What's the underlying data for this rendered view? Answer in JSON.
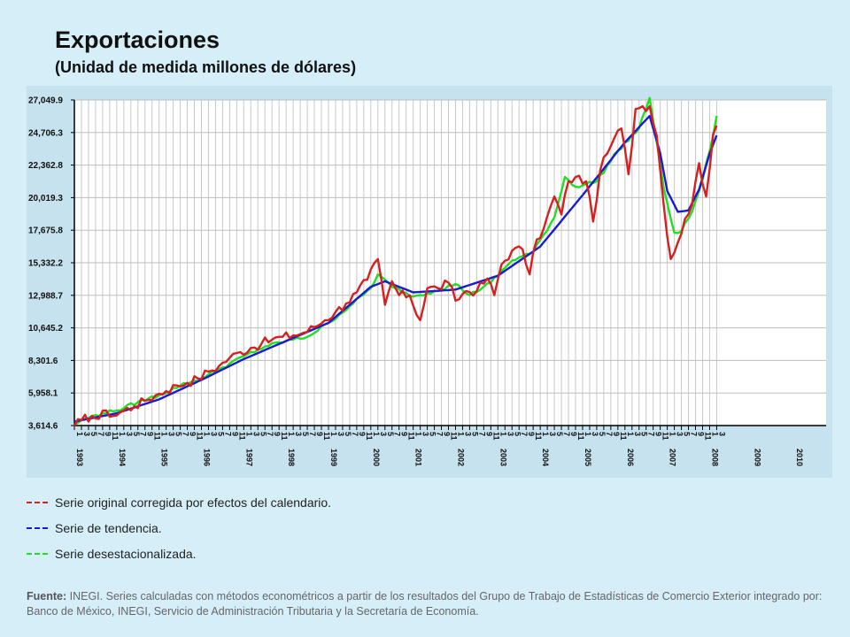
{
  "header": {
    "title": "Exportaciones",
    "subtitle": "(Unidad de medida millones de dólares)"
  },
  "legend": [
    {
      "label": "Serie original corregida por efectos del calendario.",
      "color": "#d42020"
    },
    {
      "label": "Serie de tendencia.",
      "color": "#1a1ad0"
    },
    {
      "label": "Serie desestacionalizada.",
      "color": "#22dd22"
    }
  ],
  "source": {
    "prefix": "Fuente:",
    "text": "INEGI. Series calculadas con métodos econométricos a partir de los resultados del Grupo de Trabajo de Estadísticas de Comercio Exterior integrado por: Banco de México, INEGI, Servicio de Administración Tributaria y la Secretaría de Economía."
  },
  "chart_data": {
    "type": "line",
    "title": "Exportaciones",
    "subtitle": "(Unidad de medida millones de dólares)",
    "ylim": [
      3614.6,
      27049.9
    ],
    "y_ticks": [
      {
        "value": 3614.6,
        "label": "3,614.6"
      },
      {
        "value": 5958.1,
        "label": "5,958.1"
      },
      {
        "value": 8301.6,
        "label": "8,301.6"
      },
      {
        "value": 10645.2,
        "label": "10,645.2"
      },
      {
        "value": 12988.7,
        "label": "12,988.7"
      },
      {
        "value": 15332.2,
        "label": "15,332.2"
      },
      {
        "value": 17675.8,
        "label": "17,675.8"
      },
      {
        "value": 20019.3,
        "label": "20,019.3"
      },
      {
        "value": 22362.8,
        "label": "22,362.8"
      },
      {
        "value": 24706.3,
        "label": "24,706.3"
      },
      {
        "value": 27049.9,
        "label": "27,049.9"
      }
    ],
    "x_years": [
      "1993",
      "1994",
      "1995",
      "1996",
      "1997",
      "1998",
      "1999",
      "2000",
      "2001",
      "2002",
      "2003",
      "2004",
      "2005",
      "2006",
      "2007",
      "2008",
      "2009",
      "2010"
    ],
    "x_month_ticks": [
      "1",
      "3",
      "5",
      "7",
      "9",
      "11"
    ],
    "frequency": "monthly",
    "start": "1993-01",
    "grid": true,
    "series": [
      {
        "name": "Serie original corregida por efectos del calendario.",
        "color": "#d42020",
        "anchors": [
          [
            0,
            3600
          ],
          [
            2,
            4000
          ],
          [
            5,
            4300
          ],
          [
            7,
            4100
          ],
          [
            9,
            4700
          ],
          [
            11,
            4300
          ],
          [
            14,
            4700
          ],
          [
            17,
            5000
          ],
          [
            20,
            5400
          ],
          [
            23,
            5800
          ],
          [
            26,
            6100
          ],
          [
            29,
            6500
          ],
          [
            32,
            6700
          ],
          [
            35,
            7000
          ],
          [
            38,
            7500
          ],
          [
            41,
            7900
          ],
          [
            44,
            8500
          ],
          [
            47,
            8900
          ],
          [
            50,
            9200
          ],
          [
            53,
            9500
          ],
          [
            56,
            9800
          ],
          [
            59,
            10000
          ],
          [
            62,
            10100
          ],
          [
            65,
            10300
          ],
          [
            68,
            10700
          ],
          [
            71,
            11200
          ],
          [
            74,
            11800
          ],
          [
            77,
            12400
          ],
          [
            80,
            13200
          ],
          [
            83,
            14100
          ],
          [
            86,
            15600
          ],
          [
            88,
            12300
          ],
          [
            90,
            14000
          ],
          [
            92,
            13000
          ],
          [
            95,
            13000
          ],
          [
            98,
            11200
          ],
          [
            100,
            13500
          ],
          [
            103,
            13500
          ],
          [
            106,
            13900
          ],
          [
            108,
            12600
          ],
          [
            111,
            13300
          ],
          [
            114,
            13300
          ],
          [
            117,
            14200
          ],
          [
            119,
            13000
          ],
          [
            121,
            15200
          ],
          [
            124,
            16200
          ],
          [
            127,
            16300
          ],
          [
            129,
            14500
          ],
          [
            131,
            17000
          ],
          [
            133,
            17800
          ],
          [
            136,
            20100
          ],
          [
            138,
            18800
          ],
          [
            140,
            21200
          ],
          [
            142,
            21500
          ],
          [
            145,
            21200
          ],
          [
            147,
            18300
          ],
          [
            149,
            22000
          ],
          [
            151,
            23200
          ],
          [
            153,
            24300
          ],
          [
            155,
            25000
          ],
          [
            157,
            21700
          ],
          [
            159,
            26400
          ],
          [
            161,
            26600
          ],
          [
            163,
            26600
          ],
          [
            165,
            24500
          ],
          [
            167,
            19500
          ],
          [
            169,
            15600
          ],
          [
            171,
            16800
          ],
          [
            173,
            18500
          ],
          [
            175,
            19500
          ],
          [
            177,
            22500
          ],
          [
            179,
            20100
          ],
          [
            181,
            24600
          ],
          [
            182,
            25200
          ]
        ]
      },
      {
        "name": "Serie de tendencia.",
        "color": "#1a1ad0",
        "anchors": [
          [
            0,
            3900
          ],
          [
            12,
            4500
          ],
          [
            24,
            5500
          ],
          [
            36,
            6900
          ],
          [
            48,
            8400
          ],
          [
            60,
            9700
          ],
          [
            72,
            11000
          ],
          [
            84,
            13600
          ],
          [
            88,
            14000
          ],
          [
            96,
            13200
          ],
          [
            108,
            13400
          ],
          [
            120,
            14400
          ],
          [
            132,
            16500
          ],
          [
            144,
            20200
          ],
          [
            156,
            24000
          ],
          [
            163,
            25900
          ],
          [
            166,
            23200
          ],
          [
            168,
            20500
          ],
          [
            171,
            19000
          ],
          [
            174,
            19100
          ],
          [
            177,
            20600
          ],
          [
            180,
            23200
          ],
          [
            182,
            24500
          ]
        ]
      },
      {
        "name": "Serie desestacionalizada.",
        "color": "#22dd22",
        "anchors": [
          [
            0,
            3700
          ],
          [
            3,
            4100
          ],
          [
            8,
            4500
          ],
          [
            12,
            4700
          ],
          [
            18,
            5300
          ],
          [
            24,
            5800
          ],
          [
            30,
            6500
          ],
          [
            36,
            7000
          ],
          [
            42,
            7800
          ],
          [
            48,
            8600
          ],
          [
            54,
            9300
          ],
          [
            60,
            9700
          ],
          [
            66,
            10000
          ],
          [
            72,
            11000
          ],
          [
            78,
            12200
          ],
          [
            84,
            13500
          ],
          [
            86,
            14500
          ],
          [
            90,
            13600
          ],
          [
            96,
            12900
          ],
          [
            102,
            13300
          ],
          [
            108,
            13800
          ],
          [
            112,
            13000
          ],
          [
            118,
            13900
          ],
          [
            124,
            15500
          ],
          [
            130,
            16100
          ],
          [
            136,
            18600
          ],
          [
            139,
            21500
          ],
          [
            142,
            20800
          ],
          [
            148,
            21200
          ],
          [
            154,
            23400
          ],
          [
            160,
            25000
          ],
          [
            163,
            27200
          ],
          [
            167,
            20700
          ],
          [
            170,
            17500
          ],
          [
            172,
            17600
          ],
          [
            175,
            19000
          ],
          [
            178,
            21300
          ],
          [
            181,
            24500
          ],
          [
            182,
            25900
          ]
        ]
      }
    ]
  }
}
